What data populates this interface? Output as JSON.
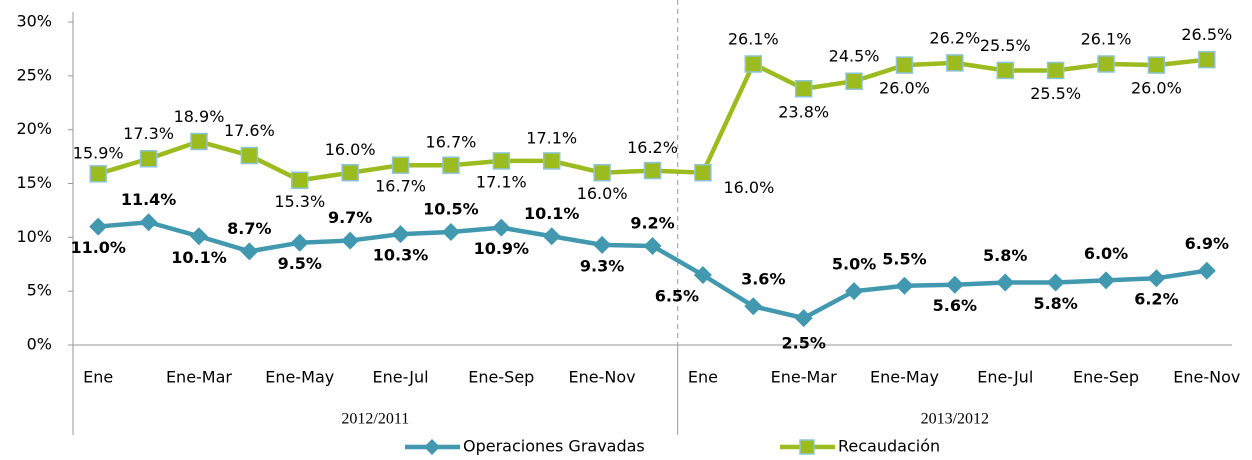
{
  "chart_data": {
    "type": "line",
    "groups": [
      {
        "name": "2012/2011",
        "categories": [
          "Ene",
          null,
          "Ene-Mar",
          null,
          "Ene-May",
          null,
          "Ene-Jul",
          null,
          "Ene-Sep",
          null,
          "Ene-Nov",
          null
        ]
      },
      {
        "name": "2013/2012",
        "categories": [
          "Ene",
          null,
          "Ene-Mar",
          null,
          "Ene-May",
          null,
          "Ene-Jul",
          null,
          "Ene-Sep",
          null,
          "Ene-Nov"
        ]
      }
    ],
    "series": [
      {
        "name": "Operaciones Gravadas",
        "color": "#4198af",
        "marker": "diamond",
        "values": [
          11.0,
          11.4,
          10.1,
          8.7,
          9.5,
          9.7,
          10.3,
          10.5,
          10.9,
          10.1,
          9.3,
          9.2,
          6.5,
          3.6,
          2.5,
          5.0,
          5.5,
          5.6,
          5.8,
          5.8,
          6.0,
          6.2,
          6.9
        ],
        "value_labels": [
          "11.0%",
          "11.4%",
          "10.1%",
          "8.7%",
          "9.5%",
          "9.7%",
          "10.3%",
          "10.5%",
          "10.9%",
          "10.1%",
          "9.3%",
          "9.2%",
          "6.5%",
          "3.6%",
          "2.5%",
          "5.0%",
          "5.5%",
          "5.6%",
          "5.8%",
          "5.8%",
          "6.0%",
          "6.2%",
          "6.9%"
        ]
      },
      {
        "name": "Recaudación",
        "color": "#9bbb1e",
        "marker": "square",
        "values": [
          15.9,
          17.3,
          18.9,
          17.6,
          15.3,
          16.0,
          16.7,
          16.7,
          17.1,
          17.1,
          16.0,
          16.2,
          16.0,
          26.1,
          23.8,
          24.5,
          26.0,
          26.2,
          25.5,
          25.5,
          26.1,
          26.0,
          26.5
        ],
        "value_labels": [
          "15.9%",
          "17.3%",
          "18.9%",
          "17.6%",
          "15.3%",
          "16.0%",
          "16.7%",
          "16.7%",
          "17.1%",
          "17.1%",
          "16.0%",
          "16.2%",
          "16.0%",
          "26.1%",
          "23.8%",
          "24.5%",
          "26.0%",
          "26.2%",
          "25.5%",
          "25.5%",
          "26.1%",
          "26.0%",
          "26.5%"
        ]
      }
    ],
    "ylim": [
      0,
      30
    ],
    "yticks": [
      {
        "value": 0,
        "label": "0%"
      },
      {
        "value": 5,
        "label": "5%"
      },
      {
        "value": 10,
        "label": "10%"
      },
      {
        "value": 15,
        "label": "15%"
      },
      {
        "value": 20,
        "label": "20%"
      },
      {
        "value": 25,
        "label": "25%"
      },
      {
        "value": 30,
        "label": "30%"
      }
    ],
    "legend": "bottom"
  }
}
